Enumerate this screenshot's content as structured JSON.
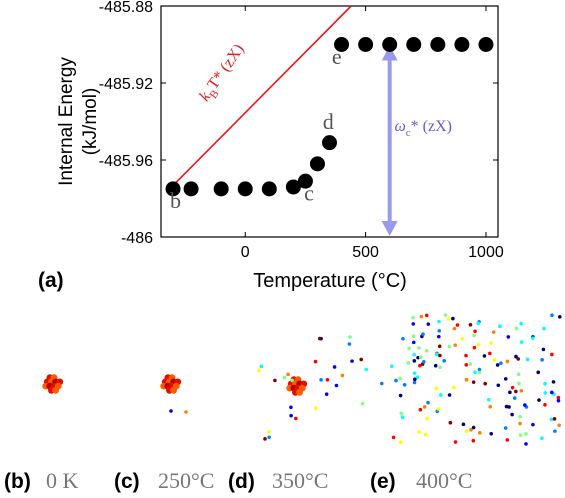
{
  "chart_data": {
    "type": "scatter",
    "panel_label": "(a)",
    "xlabel": "Temperature (°C)",
    "ylabel": "Internal Energy (kJ/mol)",
    "xlim": [
      -350,
      1050
    ],
    "ylim": [
      -486.0,
      -485.88
    ],
    "xticks": [
      0,
      500,
      1000
    ],
    "yticks": [
      -486.0,
      -485.96,
      -485.92,
      -485.88
    ],
    "ytick_labels": [
      "-486",
      "-485.96",
      "-485.92",
      "-485.88"
    ],
    "grid": false,
    "series": [
      {
        "color": "#000000",
        "x": [
          -300,
          -225,
          -100,
          0,
          100,
          200,
          250,
          300,
          350,
          400,
          500,
          600,
          700,
          800,
          900,
          1000
        ],
        "y": [
          -485.975,
          -485.975,
          -485.975,
          -485.975,
          -485.975,
          -485.974,
          -485.971,
          -485.962,
          -485.951,
          -485.9,
          -485.9,
          -485.9,
          -485.9,
          -485.9,
          -485.9,
          -485.9
        ]
      }
    ],
    "fit_line": {
      "color": "#e31a1c",
      "x": [
        -290,
        440
      ],
      "y": [
        -485.972,
        -485.88
      ]
    },
    "point_labels": [
      {
        "text": "b",
        "x": -290,
        "y": -485.985
      },
      {
        "text": "c",
        "x": 265,
        "y": -485.981
      },
      {
        "text": "d",
        "x": 345,
        "y": -485.944
      },
      {
        "text": "e",
        "x": 380,
        "y": -485.91
      }
    ],
    "annotations": [
      {
        "text_main": "k",
        "text_sub": "B",
        "text_rest": "T* (zX)",
        "color": "#e31a1c",
        "x": -160,
        "y": -485.93,
        "rotation": -55
      },
      {
        "text_main": "ω",
        "text_sub": "c",
        "text_rest": "* (zX)",
        "color": "#6a5acd",
        "x": 620,
        "y": -485.945
      }
    ],
    "arrow": {
      "color": "#9999ee",
      "x": 600,
      "y_from": -486.0,
      "y_to": -485.9
    }
  },
  "snapshots": [
    {
      "id": "b",
      "label": "(b)",
      "caption": "0 K"
    },
    {
      "id": "c",
      "label": "(c)",
      "caption": "250°C"
    },
    {
      "id": "d",
      "label": "(d)",
      "caption": "350°C"
    },
    {
      "id": "e",
      "label": "(e)",
      "caption": "400°C"
    }
  ]
}
